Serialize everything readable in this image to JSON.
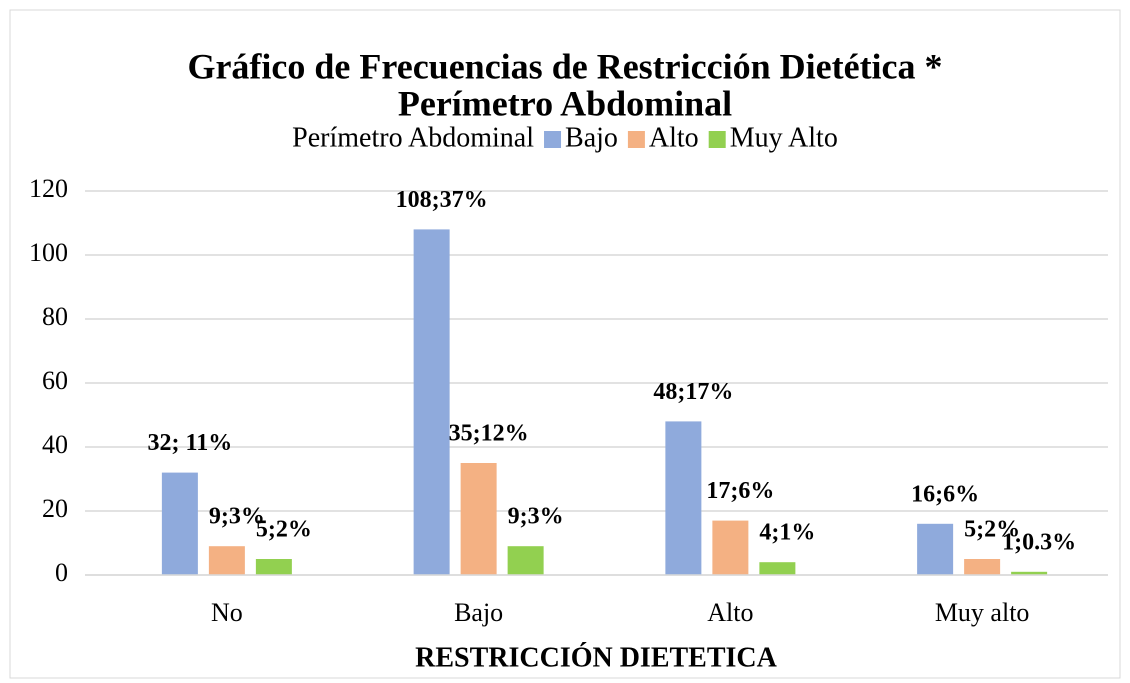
{
  "chart_data": {
    "type": "bar",
    "title": [
      "Gráfico de Frecuencias de Restricción Dietética *",
      "Perímetro Abdominal"
    ],
    "legend_title": "Perímetro Abdominal",
    "legend": "top",
    "x_label": "RESTRICCIÓN DIETETICA",
    "categories": [
      "No",
      "Bajo",
      "Alto",
      "Muy alto"
    ],
    "series": [
      {
        "name": "Bajo",
        "color": "#8faadc",
        "values": [
          32,
          108,
          48,
          16
        ],
        "value_labels": [
          "32; 11%",
          "108;37%",
          "48;17%",
          "16;6%"
        ]
      },
      {
        "name": "Alto",
        "color": "#f4b183",
        "values": [
          9,
          35,
          17,
          5
        ],
        "value_labels": [
          "9;3%",
          "35;12%",
          "17;6%",
          "5;2%"
        ]
      },
      {
        "name": "Muy Alto",
        "color": "#92d050",
        "values": [
          5,
          9,
          4,
          1
        ],
        "value_labels": [
          "5;2%",
          "9;3%",
          "4;1%",
          "1;0.3%"
        ]
      }
    ],
    "ylim": [
      0,
      120
    ],
    "yticks": [
      0,
      20,
      40,
      60,
      80,
      100,
      120
    ],
    "grid": true
  }
}
